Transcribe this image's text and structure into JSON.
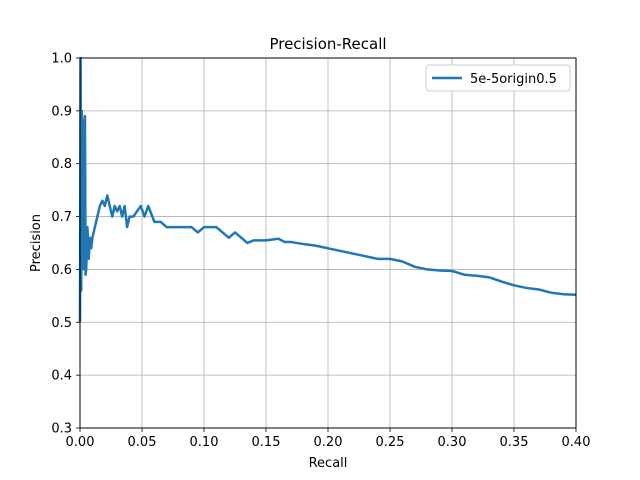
{
  "chart_data": {
    "type": "line",
    "title": "Precision-Recall",
    "xlabel": "Recall",
    "ylabel": "Precision",
    "xlim": [
      0.0,
      0.4
    ],
    "ylim": [
      0.3,
      1.0
    ],
    "xticks": [
      "0.00",
      "0.05",
      "0.10",
      "0.15",
      "0.20",
      "0.25",
      "0.30",
      "0.35",
      "0.40"
    ],
    "yticks": [
      "0.3",
      "0.4",
      "0.5",
      "0.6",
      "0.7",
      "0.8",
      "0.9",
      "1.0"
    ],
    "grid": true,
    "legend_position": "top-right",
    "series": [
      {
        "name": "5e-5origin0.5",
        "color": "#1f77b4",
        "x": [
          0.0,
          0.0005,
          0.001,
          0.0015,
          0.002,
          0.0025,
          0.003,
          0.0035,
          0.004,
          0.0045,
          0.005,
          0.006,
          0.007,
          0.008,
          0.009,
          0.01,
          0.012,
          0.014,
          0.016,
          0.018,
          0.02,
          0.022,
          0.024,
          0.026,
          0.028,
          0.03,
          0.032,
          0.034,
          0.036,
          0.038,
          0.04,
          0.043,
          0.046,
          0.049,
          0.052,
          0.055,
          0.06,
          0.065,
          0.07,
          0.075,
          0.08,
          0.085,
          0.09,
          0.095,
          0.1,
          0.105,
          0.11,
          0.115,
          0.12,
          0.125,
          0.13,
          0.135,
          0.14,
          0.15,
          0.16,
          0.165,
          0.17,
          0.18,
          0.19,
          0.2,
          0.21,
          0.22,
          0.23,
          0.24,
          0.25,
          0.26,
          0.27,
          0.28,
          0.29,
          0.3,
          0.31,
          0.32,
          0.33,
          0.34,
          0.35,
          0.36,
          0.37,
          0.38,
          0.39,
          0.4
        ],
        "y": [
          0.5,
          1.0,
          0.56,
          0.9,
          0.7,
          0.83,
          0.6,
          0.88,
          0.89,
          0.59,
          0.6,
          0.68,
          0.62,
          0.66,
          0.64,
          0.66,
          0.68,
          0.7,
          0.72,
          0.73,
          0.72,
          0.74,
          0.72,
          0.7,
          0.72,
          0.71,
          0.72,
          0.7,
          0.72,
          0.68,
          0.7,
          0.7,
          0.71,
          0.72,
          0.7,
          0.72,
          0.69,
          0.69,
          0.68,
          0.68,
          0.68,
          0.68,
          0.68,
          0.67,
          0.68,
          0.68,
          0.68,
          0.67,
          0.66,
          0.67,
          0.66,
          0.65,
          0.655,
          0.655,
          0.658,
          0.652,
          0.652,
          0.648,
          0.645,
          0.64,
          0.635,
          0.63,
          0.625,
          0.62,
          0.62,
          0.615,
          0.605,
          0.6,
          0.598,
          0.597,
          0.59,
          0.588,
          0.585,
          0.577,
          0.57,
          0.565,
          0.562,
          0.556,
          0.553,
          0.552
        ]
      }
    ]
  }
}
